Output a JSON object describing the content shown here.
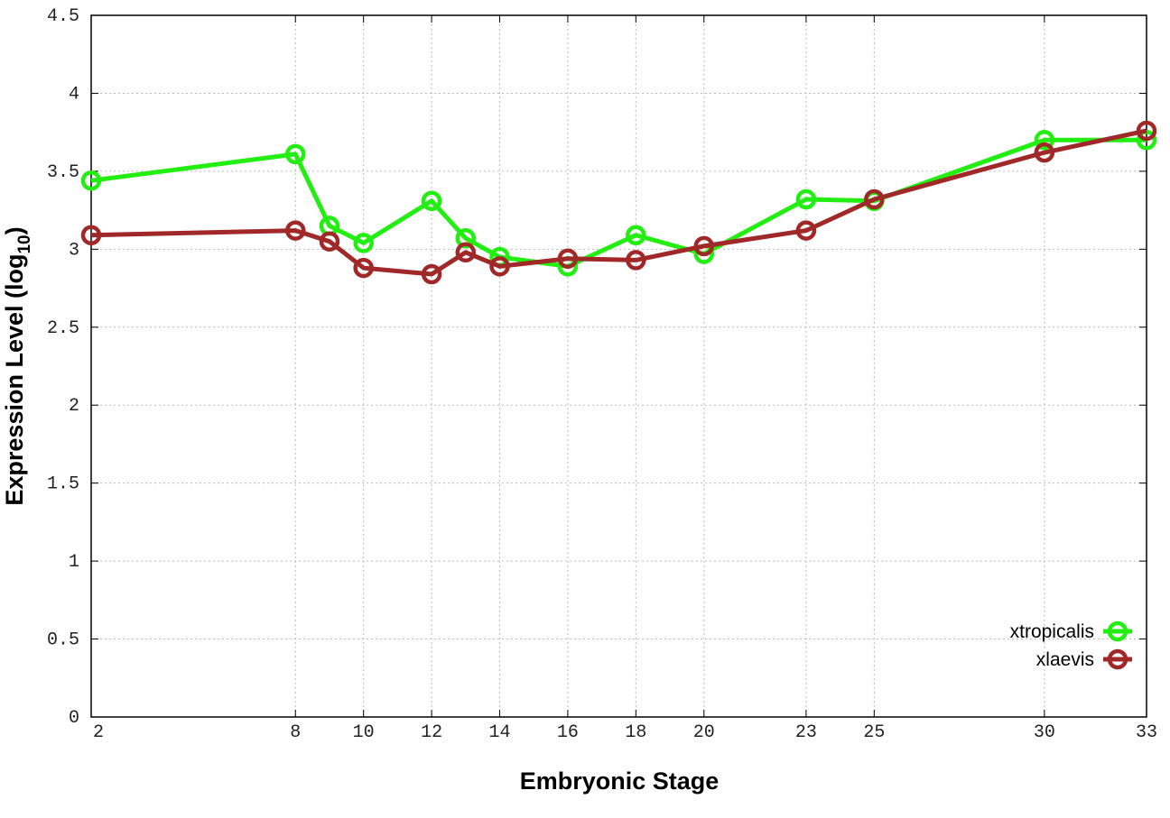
{
  "chart_data": {
    "type": "line",
    "title": "",
    "xlabel": "Embryonic Stage",
    "ylabel_main": "Expression Level (log",
    "ylabel_sub": "10",
    "ylabel_close": ")",
    "xlim": [
      2,
      33
    ],
    "ylim": [
      0,
      4.5
    ],
    "xticks": [
      2,
      8,
      10,
      12,
      14,
      16,
      18,
      20,
      23,
      25,
      30,
      33
    ],
    "yticks": [
      0,
      0.5,
      1,
      1.5,
      2,
      2.5,
      3,
      3.5,
      4,
      4.5
    ],
    "ytick_labels": [
      "0",
      "0.5",
      "1",
      "1.5",
      "2",
      "2.5",
      "3",
      "3.5",
      "4",
      "4.5"
    ],
    "grid": true,
    "legend_position": "bottom-right",
    "x": [
      2,
      8,
      9,
      10,
      12,
      13,
      14,
      16,
      18,
      20,
      23,
      25,
      30,
      33
    ],
    "series": [
      {
        "name": "xtropicalis",
        "color": "#22ee11",
        "values": [
          3.44,
          3.61,
          3.15,
          3.04,
          3.31,
          3.07,
          2.95,
          2.89,
          3.09,
          2.97,
          3.32,
          3.31,
          3.7,
          3.7
        ]
      },
      {
        "name": "xlaevis",
        "color": "#a02828",
        "values": [
          3.09,
          3.12,
          3.05,
          2.88,
          2.84,
          2.98,
          2.89,
          2.94,
          2.93,
          3.02,
          3.12,
          3.32,
          3.62,
          3.76
        ]
      }
    ]
  }
}
